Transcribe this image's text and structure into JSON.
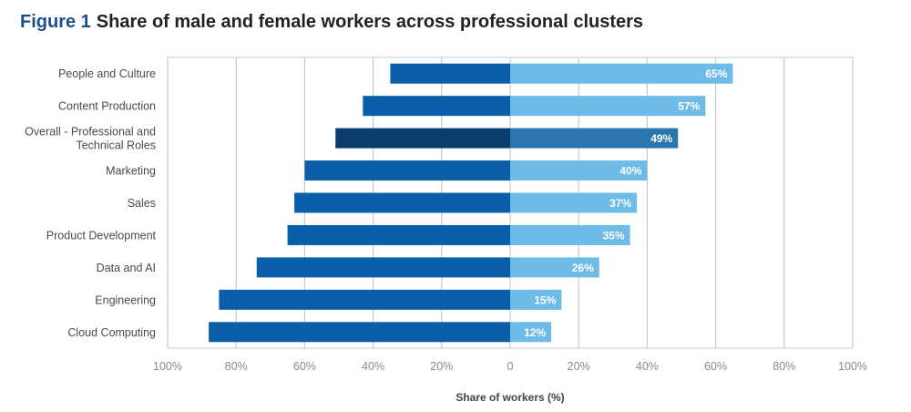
{
  "figure": {
    "number": "Figure 1",
    "title": "Share of male and female workers across professional clusters"
  },
  "chart_data": {
    "type": "bar",
    "orientation": "horizontal-diverging",
    "xlabel": "Share of workers (%)",
    "x_tick_labels": [
      "100%",
      "80%",
      "60%",
      "40%",
      "20%",
      "0",
      "20%",
      "40%",
      "60%",
      "80%",
      "100%"
    ],
    "xlim": [
      -100,
      100
    ],
    "grid": true,
    "categories": [
      [
        "People and Culture"
      ],
      [
        "Content Production"
      ],
      [
        "Overall - Professional and",
        "Technical Roles"
      ],
      [
        "Marketing"
      ],
      [
        "Sales"
      ],
      [
        "Product Development"
      ],
      [
        "Data and AI"
      ],
      [
        "Engineering"
      ],
      [
        "Cloud Computing"
      ]
    ],
    "series": [
      {
        "values": [
          35,
          43,
          51,
          60,
          63,
          65,
          74,
          85,
          88
        ]
      },
      {
        "values": [
          65,
          57,
          49,
          40,
          37,
          35,
          26,
          15,
          12
        ]
      }
    ],
    "value_labels": [
      "65%",
      "57%",
      "49%",
      "40%",
      "37%",
      "35%",
      "26%",
      "15%",
      "12%"
    ],
    "highlight_index": 2,
    "colors": {
      "left": "#0b5fa8",
      "right": "#6dbbe6",
      "left_highlight": "#0a3d6b",
      "right_highlight": "#2b77ad",
      "grid": "#c8c8c8"
    }
  }
}
